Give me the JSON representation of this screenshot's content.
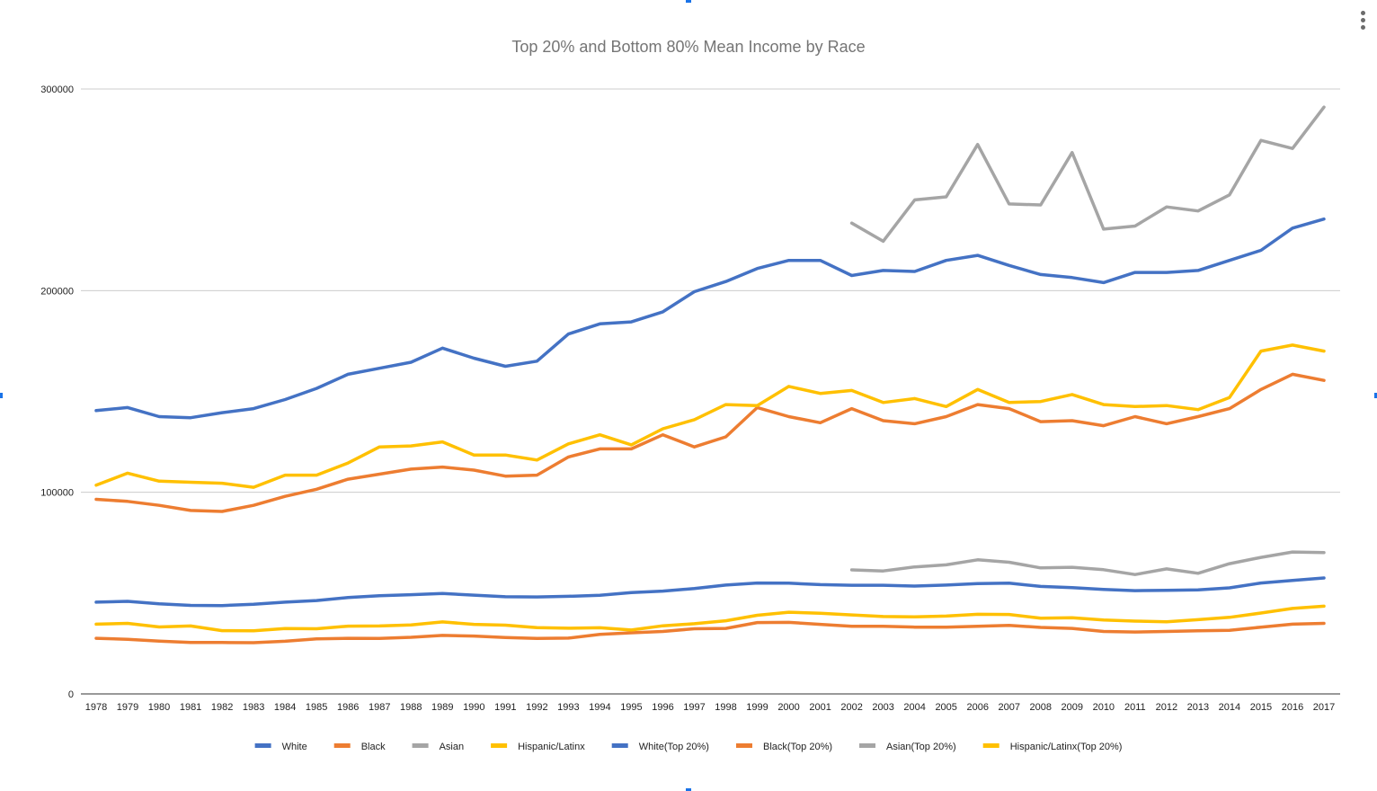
{
  "chart_data": {
    "type": "line",
    "title": "Top 20% and Bottom 80% Mean Income by Race",
    "xlabel": "",
    "ylabel": "",
    "ylim": [
      0,
      300000
    ],
    "yticks": [
      "0",
      "100000",
      "200000",
      "300000"
    ],
    "grid": true,
    "legend_position": "bottom",
    "categories": [
      "1978",
      "1979",
      "1980",
      "1981",
      "1982",
      "1983",
      "1984",
      "1985",
      "1986",
      "1987",
      "1988",
      "1989",
      "1990",
      "1991",
      "1992",
      "1993",
      "1994",
      "1995",
      "1996",
      "1997",
      "1998",
      "1999",
      "2000",
      "2001",
      "2002",
      "2003",
      "2004",
      "2005",
      "2006",
      "2007",
      "2008",
      "2009",
      "2010",
      "2011",
      "2012",
      "2013",
      "2014",
      "2015",
      "2016",
      "2017"
    ],
    "series": [
      {
        "name": "White",
        "color": "#4472c4",
        "values": [
          45500,
          45900,
          44700,
          43900,
          43800,
          44500,
          45500,
          46300,
          47800,
          48700,
          49200,
          49800,
          49000,
          48200,
          48100,
          48400,
          48900,
          50300,
          51000,
          52300,
          54000,
          55000,
          54900,
          54200,
          53900,
          53900,
          53500,
          54000,
          54700,
          54900,
          53300,
          52700,
          51800,
          51200,
          51400,
          51600,
          52600,
          55000,
          56300,
          57500
        ]
      },
      {
        "name": "Black",
        "color": "#ed7d31",
        "values": [
          27600,
          27100,
          26200,
          25500,
          25500,
          25400,
          26100,
          27300,
          27600,
          27500,
          28100,
          29000,
          28700,
          28000,
          27500,
          27700,
          29500,
          30300,
          31000,
          32300,
          32500,
          35400,
          35500,
          34500,
          33500,
          33500,
          33100,
          33100,
          33500,
          34000,
          33000,
          32500,
          31000,
          30700,
          31000,
          31300,
          31500,
          33100,
          34600,
          35000
        ]
      },
      {
        "name": "Asian",
        "color": "#a5a5a5",
        "values": [
          null,
          null,
          null,
          null,
          null,
          null,
          null,
          null,
          null,
          null,
          null,
          null,
          null,
          null,
          null,
          null,
          null,
          null,
          null,
          null,
          null,
          null,
          null,
          null,
          61500,
          61000,
          63000,
          64000,
          66500,
          65300,
          62500,
          62800,
          61600,
          59200,
          62000,
          59800,
          64600,
          67700,
          70400,
          70100
        ]
      },
      {
        "name": "Hispanic/Latinx",
        "color": "#ffc000",
        "values": [
          34600,
          35000,
          33200,
          33700,
          31400,
          31300,
          32400,
          32300,
          33600,
          33700,
          34200,
          35700,
          34500,
          34100,
          32900,
          32600,
          32800,
          31700,
          33800,
          34800,
          36300,
          39000,
          40500,
          40000,
          39200,
          38400,
          38200,
          38600,
          39500,
          39400,
          37600,
          37800,
          36700,
          36100,
          35800,
          36800,
          38000,
          40100,
          42400,
          43500
        ]
      },
      {
        "name": "White(Top 20%)",
        "color": "#4472c4",
        "values": [
          140500,
          142000,
          137500,
          137000,
          139500,
          141500,
          146000,
          151500,
          158500,
          161500,
          164500,
          171500,
          166500,
          162500,
          165000,
          178500,
          183500,
          184500,
          189500,
          199500,
          204500,
          211000,
          215000,
          215000,
          207500,
          210000,
          209500,
          215000,
          217500,
          212500,
          208000,
          206500,
          204000,
          209000,
          209000,
          210000,
          215000,
          220000,
          231000,
          235500
        ]
      },
      {
        "name": "Black(Top 20%)",
        "color": "#ed7d31",
        "values": [
          96500,
          95500,
          93500,
          91000,
          90500,
          93500,
          98000,
          101500,
          106500,
          109000,
          111500,
          112500,
          111000,
          108000,
          108500,
          117500,
          121500,
          121500,
          128500,
          122500,
          127500,
          142000,
          137500,
          134500,
          141500,
          135500,
          134000,
          137500,
          143500,
          141500,
          135000,
          135500,
          133000,
          137500,
          134000,
          137500,
          141500,
          151000,
          158500,
          155500
        ]
      },
      {
        "name": "Asian(Top 20%)",
        "color": "#a5a5a5",
        "values": [
          null,
          null,
          null,
          null,
          null,
          null,
          null,
          null,
          null,
          null,
          null,
          null,
          null,
          null,
          null,
          null,
          null,
          null,
          null,
          null,
          null,
          null,
          null,
          null,
          233500,
          224500,
          245000,
          246500,
          272500,
          243000,
          242500,
          268500,
          230500,
          232000,
          241500,
          239500,
          247500,
          274500,
          270500,
          291000
        ]
      },
      {
        "name": "Hispanic/Latinx(Top 20%)",
        "color": "#ffc000",
        "values": [
          103500,
          109500,
          105500,
          105000,
          104500,
          102500,
          108500,
          108500,
          114500,
          122500,
          123000,
          125000,
          118500,
          118500,
          116000,
          124000,
          128500,
          123500,
          131500,
          136000,
          143500,
          143000,
          152500,
          149000,
          150500,
          144500,
          146500,
          142500,
          151000,
          144500,
          145000,
          148500,
          143500,
          142500,
          143000,
          141000,
          147000,
          170000,
          173000,
          170000
        ]
      }
    ]
  }
}
